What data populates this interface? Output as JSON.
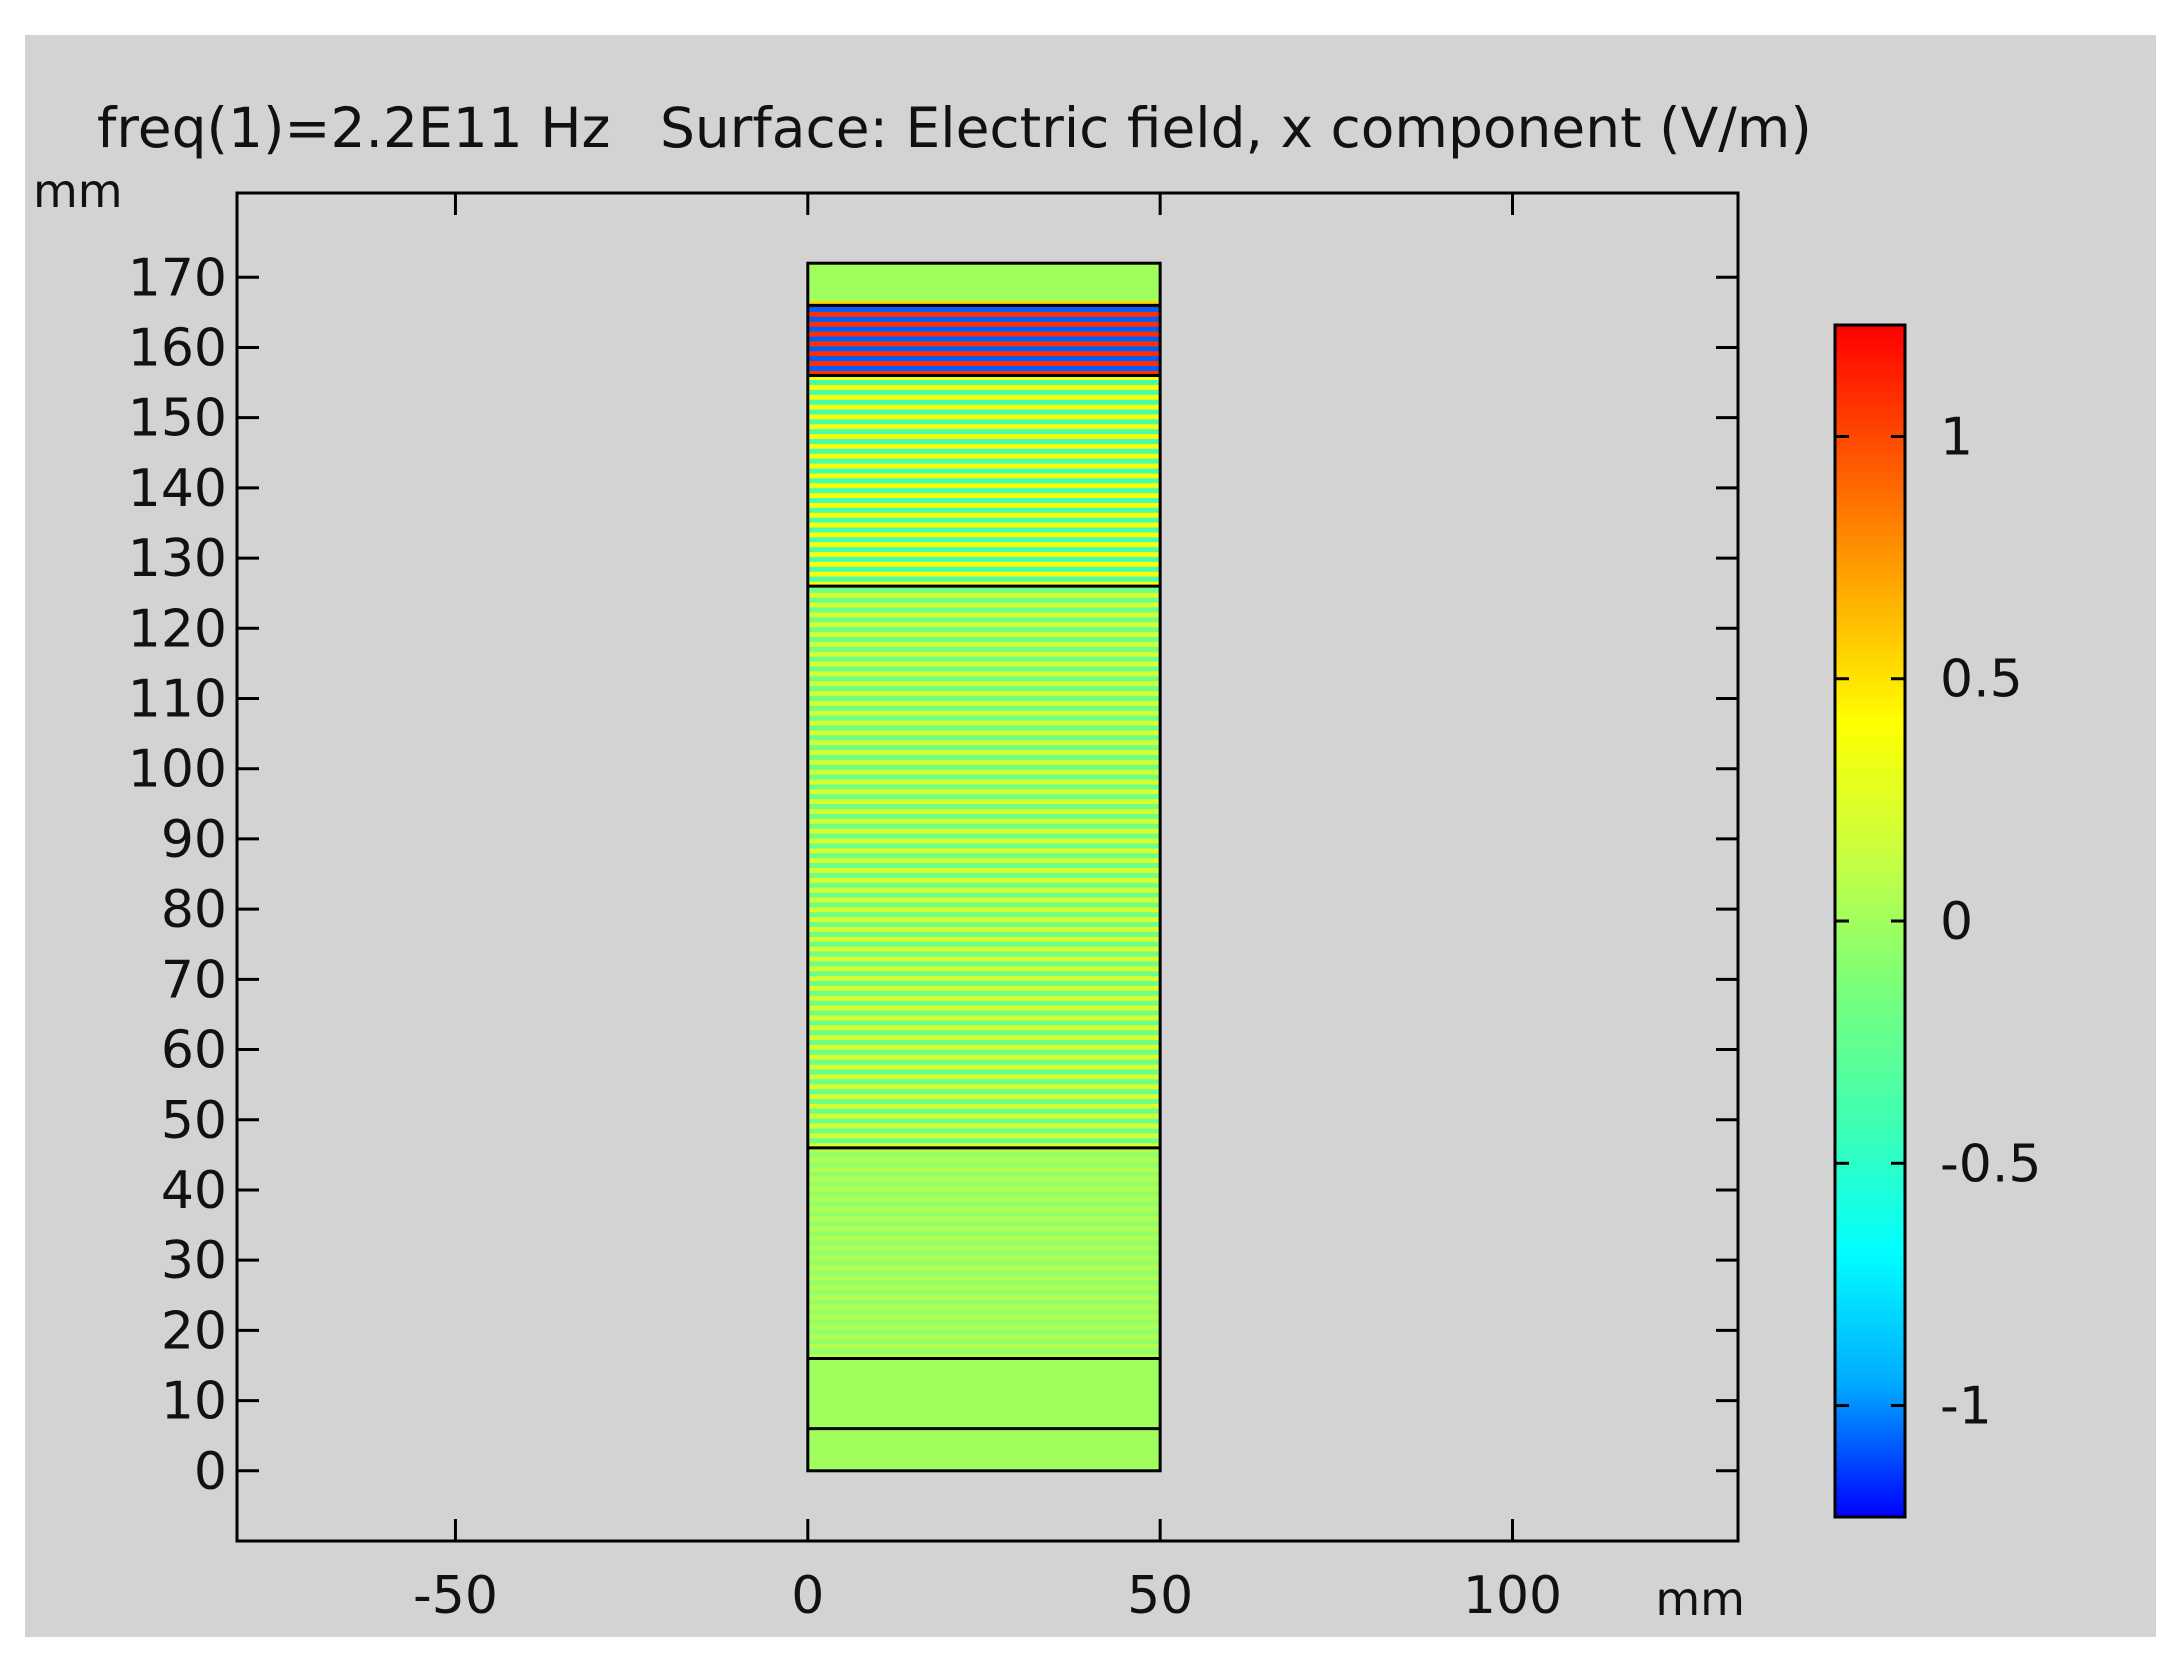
{
  "title": {
    "freq": "freq(1)=2.2E11 Hz",
    "quantity": "Surface: Electric field, x component (V/m)"
  },
  "chart_data": {
    "type": "heatmap",
    "title": "freq(1)=2.2E11 Hz Surface: Electric field, x component (V/m)",
    "x_axis": {
      "unit": "mm",
      "ticks": [
        -50,
        0,
        50,
        100
      ],
      "tick_labels": [
        "-50",
        "0",
        "50",
        "100"
      ],
      "range": [
        -81,
        132
      ]
    },
    "y_axis": {
      "unit": "mm",
      "ticks": [
        0,
        10,
        20,
        30,
        40,
        50,
        60,
        70,
        80,
        90,
        100,
        110,
        120,
        130,
        140,
        150,
        160,
        170
      ],
      "tick_labels": [
        "0",
        "10",
        "20",
        "30",
        "40",
        "50",
        "60",
        "70",
        "80",
        "90",
        "100",
        "110",
        "120",
        "130",
        "140",
        "150",
        "160",
        "170"
      ],
      "range": [
        -10,
        182
      ]
    },
    "domain": {
      "x": [
        0,
        50
      ],
      "y": [
        0,
        172
      ]
    },
    "layer_boundaries_y": [
      6,
      16,
      46,
      126,
      156,
      166
    ],
    "layers": [
      {
        "y": [
          0,
          6
        ],
        "field": "near 0"
      },
      {
        "y": [
          6,
          16
        ],
        "field": "near 0"
      },
      {
        "y": [
          16,
          46
        ],
        "field": "near 0, faint oscillation"
      },
      {
        "y": [
          46,
          126
        ],
        "field": "oscillating, small amplitude (~±0.2)"
      },
      {
        "y": [
          126,
          156
        ],
        "field": "oscillating, moderate amplitude (~±0.4)"
      },
      {
        "y": [
          156,
          166
        ],
        "field": "oscillating, full amplitude (~±1.2)"
      },
      {
        "y": [
          166,
          172
        ],
        "field": "near 0"
      }
    ],
    "colorbar": {
      "ticks": [
        1,
        0.5,
        0,
        -0.5,
        -1
      ],
      "tick_labels": [
        "1",
        "0.5",
        "0",
        "-0.5",
        "-1"
      ],
      "range": [
        -1.23,
        1.23
      ],
      "colormap": "rainbow",
      "colors": [
        "#0000ff",
        "#00aaff",
        "#00ffff",
        "#40ffb0",
        "#7aff7a",
        "#c8ff40",
        "#ffff00",
        "#ffaa00",
        "#ff5500",
        "#ff0000"
      ]
    },
    "grid": false
  }
}
